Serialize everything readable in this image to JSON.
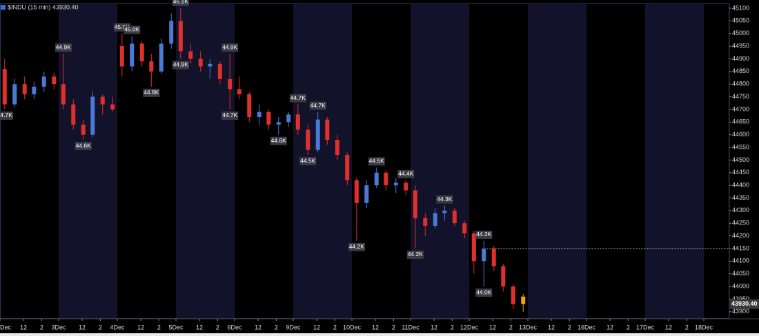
{
  "chart_data": {
    "type": "candlestick",
    "title": "$INDU (15 min) 43930.40",
    "up_color": "#4a7ad6",
    "down_color": "#e0302c",
    "last_color": "#f0a020",
    "background": "#000000",
    "shade_color": "#12122a",
    "alternate_day_shading": true,
    "xlim": [
      0,
      12.435
    ],
    "ylim": [
      43875,
      45119
    ],
    "yticks": [
      43900,
      43950,
      44000,
      44050,
      44100,
      44150,
      44200,
      44250,
      44300,
      44350,
      44400,
      44450,
      44500,
      44550,
      44600,
      44650,
      44700,
      44750,
      44800,
      44850,
      44900,
      44950,
      45000,
      45050,
      45100
    ],
    "xticks": [
      {
        "value": 0,
        "label": "Dec"
      },
      {
        "value": 0.4,
        "label": "12"
      },
      {
        "value": 0.71,
        "label": "2"
      },
      {
        "value": 1,
        "label": "3Dec"
      },
      {
        "value": 1.4,
        "label": "12"
      },
      {
        "value": 1.71,
        "label": "2"
      },
      {
        "value": 2,
        "label": "4Dec"
      },
      {
        "value": 2.4,
        "label": "12"
      },
      {
        "value": 2.71,
        "label": "2"
      },
      {
        "value": 3,
        "label": "5Dec"
      },
      {
        "value": 3.4,
        "label": "12"
      },
      {
        "value": 3.71,
        "label": "2"
      },
      {
        "value": 4,
        "label": "6Dec"
      },
      {
        "value": 4.4,
        "label": "12"
      },
      {
        "value": 4.71,
        "label": "2"
      },
      {
        "value": 5,
        "label": "9Dec"
      },
      {
        "value": 5.4,
        "label": "12"
      },
      {
        "value": 5.71,
        "label": "2"
      },
      {
        "value": 6,
        "label": "10Dec"
      },
      {
        "value": 6.4,
        "label": "12"
      },
      {
        "value": 6.71,
        "label": "2"
      },
      {
        "value": 7,
        "label": "11Dec"
      },
      {
        "value": 7.4,
        "label": "12"
      },
      {
        "value": 7.71,
        "label": "2"
      },
      {
        "value": 8,
        "label": "12Dec"
      },
      {
        "value": 8.4,
        "label": "12"
      },
      {
        "value": 8.71,
        "label": "2"
      },
      {
        "value": 9,
        "label": "13Dec"
      },
      {
        "value": 9.4,
        "label": "12"
      },
      {
        "value": 9.71,
        "label": "2"
      },
      {
        "value": 10,
        "label": "16Dec"
      },
      {
        "value": 10.4,
        "label": "12"
      },
      {
        "value": 10.71,
        "label": "2"
      },
      {
        "value": 11,
        "label": "17Dec"
      },
      {
        "value": 11.4,
        "label": "12"
      },
      {
        "value": 11.71,
        "label": "2"
      },
      {
        "value": 12,
        "label": "18Dec"
      }
    ],
    "x": [
      0.08,
      0.25,
      0.42,
      0.58,
      0.75,
      0.92,
      1.08,
      1.25,
      1.42,
      1.58,
      1.75,
      1.92,
      2.08,
      2.25,
      2.42,
      2.58,
      2.75,
      2.92,
      3.08,
      3.25,
      3.42,
      3.58,
      3.75,
      3.92,
      4.08,
      4.25,
      4.42,
      4.58,
      4.75,
      4.92,
      5.08,
      5.25,
      5.42,
      5.58,
      5.75,
      5.92,
      6.08,
      6.25,
      6.42,
      6.58,
      6.75,
      6.92,
      7.08,
      7.25,
      7.42,
      7.58,
      7.75,
      7.92,
      8.08,
      8.25,
      8.42,
      8.58,
      8.75,
      8.92
    ],
    "open": [
      44860,
      44720,
      44800,
      44760,
      44790,
      44830,
      44800,
      44720,
      44640,
      44600,
      44750,
      44720,
      44950,
      44870,
      44960,
      44890,
      44850,
      44960,
      45050,
      44930,
      44900,
      44870,
      44880,
      44820,
      44780,
      44760,
      44670,
      44690,
      44640,
      44650,
      44680,
      44620,
      44540,
      44660,
      44580,
      44520,
      44420,
      44330,
      44400,
      44450,
      44400,
      44410,
      44380,
      44270,
      44240,
      44290,
      44300,
      44250,
      44210,
      44100,
      44150,
      44080,
      44000,
      43960
    ],
    "high": [
      44900,
      44820,
      44830,
      44810,
      44850,
      44845,
      44920,
      44740,
      44660,
      44770,
      44760,
      44750,
      45000,
      44990,
      44970,
      44920,
      44980,
      45080,
      45100,
      44960,
      44930,
      44900,
      44890,
      44920,
      44830,
      44770,
      44720,
      44700,
      44670,
      44690,
      44720,
      44640,
      44690,
      44670,
      44600,
      44530,
      44430,
      44420,
      44470,
      44460,
      44430,
      44420,
      44400,
      44290,
      44310,
      44320,
      44310,
      44260,
      44220,
      44180,
      44160,
      44090,
      44010,
      43970
    ],
    "low": [
      44700,
      44710,
      44740,
      44740,
      44770,
      44780,
      44700,
      44620,
      44580,
      44590,
      44680,
      44690,
      44830,
      44850,
      44870,
      44790,
      44840,
      44940,
      44900,
      44880,
      44850,
      44820,
      44800,
      44700,
      44740,
      44650,
      44640,
      44620,
      44600,
      44630,
      44600,
      44520,
      44530,
      44560,
      44500,
      44400,
      44180,
      44310,
      44390,
      44380,
      44370,
      44360,
      44150,
      44200,
      44230,
      44260,
      44240,
      44190,
      44050,
      44000,
      44060,
      43980,
      43910,
      43900
    ],
    "close": [
      44720,
      44800,
      44760,
      44790,
      44830,
      44800,
      44720,
      44640,
      44600,
      44750,
      44720,
      44700,
      44870,
      44960,
      44890,
      44850,
      44960,
      45050,
      44930,
      44900,
      44870,
      44880,
      44820,
      44780,
      44760,
      44670,
      44690,
      44640,
      44650,
      44680,
      44620,
      44540,
      44660,
      44580,
      44520,
      44420,
      44330,
      44400,
      44450,
      44400,
      44410,
      44380,
      44270,
      44240,
      44290,
      44300,
      44250,
      44210,
      44100,
      44150,
      44080,
      44000,
      43930,
      43930.4
    ],
    "annotations": [
      {
        "x": 0.08,
        "value": 44700,
        "label": "44.7K",
        "side": "below"
      },
      {
        "x": 1.08,
        "value": 44920,
        "label": "44.9K",
        "side": "above"
      },
      {
        "x": 1.42,
        "value": 44580,
        "label": "44.6K",
        "side": "below"
      },
      {
        "x": 2.08,
        "value": 45000,
        "label": "45.0K",
        "side": "above"
      },
      {
        "x": 2.25,
        "value": 44990,
        "label": "45.0K",
        "side": "above"
      },
      {
        "x": 2.58,
        "value": 44790,
        "label": "44.8K",
        "side": "below"
      },
      {
        "x": 3.08,
        "value": 45100,
        "label": "45.1K",
        "side": "above"
      },
      {
        "x": 3.08,
        "value": 44900,
        "label": "44.9K",
        "side": "below"
      },
      {
        "x": 3.92,
        "value": 44920,
        "label": "44.9K",
        "side": "above"
      },
      {
        "x": 3.92,
        "value": 44700,
        "label": "44.7K",
        "side": "below"
      },
      {
        "x": 4.75,
        "value": 44600,
        "label": "44.6K",
        "side": "below"
      },
      {
        "x": 5.08,
        "value": 44720,
        "label": "44.7K",
        "side": "above"
      },
      {
        "x": 5.25,
        "value": 44520,
        "label": "44.5K",
        "side": "below"
      },
      {
        "x": 5.42,
        "value": 44690,
        "label": "44.7K",
        "side": "above"
      },
      {
        "x": 6.08,
        "value": 44180,
        "label": "44.2K",
        "side": "below"
      },
      {
        "x": 6.42,
        "value": 44470,
        "label": "44.5K",
        "side": "above"
      },
      {
        "x": 6.92,
        "value": 44420,
        "label": "44.4K",
        "side": "above"
      },
      {
        "x": 7.08,
        "value": 44150,
        "label": "44.2K",
        "side": "below"
      },
      {
        "x": 7.58,
        "value": 44320,
        "label": "44.3K",
        "side": "above"
      },
      {
        "x": 8.25,
        "value": 44000,
        "label": "44.0K",
        "side": "below"
      },
      {
        "x": 8.25,
        "value": 44180,
        "label": "44.2K",
        "side": "above"
      }
    ],
    "reference_line": {
      "value": 44150,
      "from_x": 8.3
    },
    "last_price": {
      "value": 43930.4,
      "label": "43930.40"
    }
  }
}
